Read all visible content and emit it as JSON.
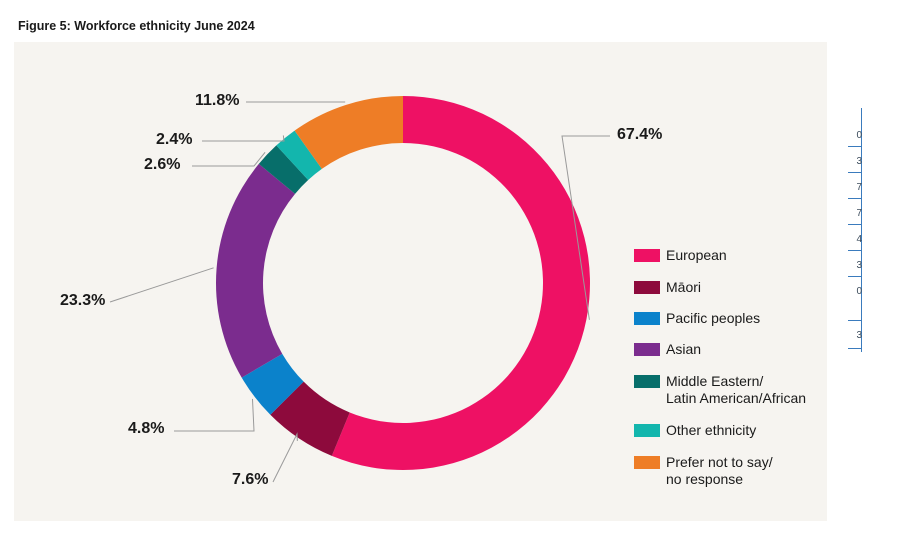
{
  "figure_title": "Figure 5: Workforce ethnicity June 2024",
  "chart_data": {
    "type": "pie",
    "variant": "donut",
    "title": "Figure 5: Workforce ethnicity June 2024",
    "unit": "%",
    "start_angle_deg": 0,
    "direction": "clockwise",
    "categories": [
      "European",
      "Māori",
      "Pacific peoples",
      "Asian",
      "Middle Eastern/\nLatin American/African",
      "Other ethnicity",
      "Prefer not to say/\nno response"
    ],
    "values": [
      67.4,
      7.6,
      4.8,
      23.3,
      2.6,
      2.4,
      11.8
    ],
    "labels": [
      "67.4%",
      "7.6%",
      "4.8%",
      "23.3%",
      "2.6%",
      "2.4%",
      "11.8%"
    ],
    "colors": [
      "#ee1164",
      "#8d0a3c",
      "#0b82cb",
      "#7b2c8e",
      "#076e6a",
      "#13b6ad",
      "#ee7d26"
    ],
    "legend_position": "right"
  },
  "edge_fragments": [
    "0",
    "3",
    "7",
    "7",
    "4",
    "3",
    "0",
    "3"
  ]
}
